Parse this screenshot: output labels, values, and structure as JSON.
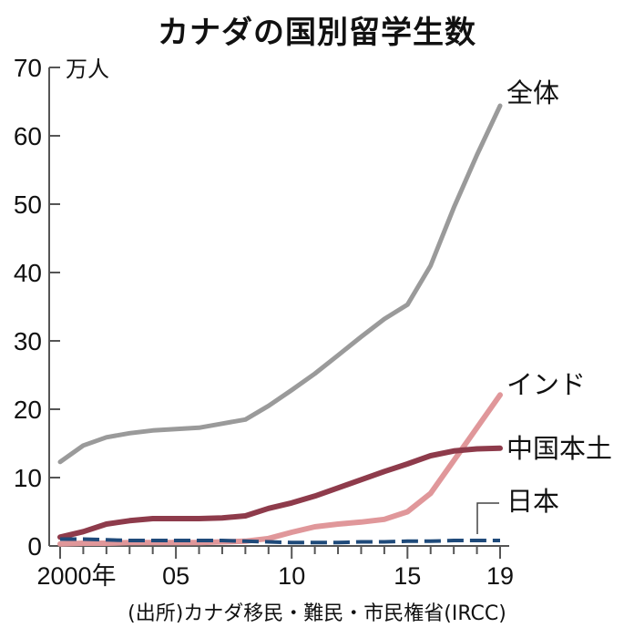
{
  "chart_data": {
    "type": "line",
    "title": "カナダの国別留学生数",
    "unit_label": "万人",
    "xlabel": "",
    "ylabel": "万人",
    "ylim": [
      0,
      70
    ],
    "yticks": [
      0,
      10,
      20,
      30,
      40,
      50,
      60,
      70
    ],
    "x": [
      2000,
      2001,
      2002,
      2003,
      2004,
      2005,
      2006,
      2007,
      2008,
      2009,
      2010,
      2011,
      2012,
      2013,
      2014,
      2015,
      2016,
      2017,
      2018,
      2019
    ],
    "xtick_labels": [
      {
        "year": 2000,
        "label": "2000年"
      },
      {
        "year": 2005,
        "label": "05"
      },
      {
        "year": 2010,
        "label": "10"
      },
      {
        "year": 2015,
        "label": "15"
      },
      {
        "year": 2019,
        "label": "19"
      }
    ],
    "grid": false,
    "legend_position": "inline-right",
    "series": [
      {
        "name": "全体",
        "color": "#9a9a9a",
        "style": "solid",
        "values": [
          12.3,
          14.7,
          15.9,
          16.5,
          16.9,
          17.1,
          17.3,
          17.9,
          18.5,
          20.5,
          22.8,
          25.2,
          27.9,
          30.6,
          33.2,
          35.3,
          41.0,
          49.5,
          57.2,
          64.4
        ]
      },
      {
        "name": "インド",
        "color": "#e0979a",
        "style": "solid",
        "values": [
          0.3,
          0.4,
          0.4,
          0.5,
          0.5,
          0.5,
          0.5,
          0.6,
          0.7,
          1.1,
          2.0,
          2.8,
          3.2,
          3.5,
          3.9,
          5.0,
          7.7,
          12.5,
          17.3,
          22.1
        ]
      },
      {
        "name": "中国本土",
        "color": "#8e3b4b",
        "style": "solid",
        "values": [
          1.3,
          2.1,
          3.2,
          3.7,
          4.0,
          4.0,
          4.0,
          4.1,
          4.4,
          5.5,
          6.3,
          7.3,
          8.5,
          9.7,
          10.9,
          12.0,
          13.2,
          13.9,
          14.2,
          14.3
        ]
      },
      {
        "name": "日本",
        "color": "#1f4a7a",
        "style": "dashed",
        "values": [
          1.0,
          1.0,
          0.9,
          0.8,
          0.8,
          0.8,
          0.8,
          0.8,
          0.7,
          0.6,
          0.5,
          0.5,
          0.5,
          0.6,
          0.6,
          0.7,
          0.7,
          0.8,
          0.8,
          0.8
        ]
      }
    ],
    "source": "(出所)カナダ移民・難民・市民権省(IRCC)"
  },
  "labels": {
    "title": "カナダの国別留学生数",
    "unit": "万人",
    "source": "(出所)カナダ移民・難民・市民権省(IRCC)"
  }
}
